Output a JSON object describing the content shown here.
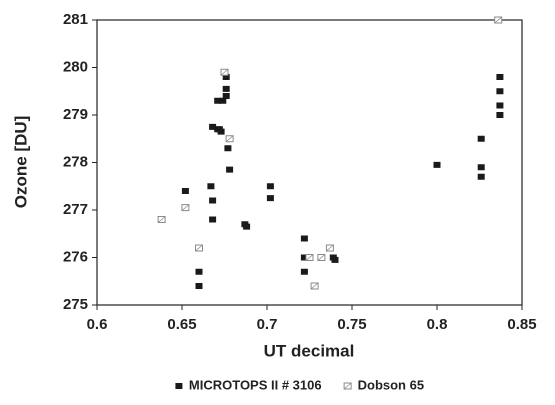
{
  "chart_data": {
    "type": "scatter",
    "x_label": "UT decimal",
    "y_label": "Ozone [DU]",
    "xlim": [
      0.6,
      0.85
    ],
    "xticks": [
      0.6,
      0.65,
      0.7,
      0.75,
      0.8,
      0.85
    ],
    "ylim": [
      275,
      281
    ],
    "yticks": [
      275,
      276,
      277,
      278,
      279,
      280,
      281
    ],
    "legend": "bottom",
    "series": [
      {
        "name": "MICROTOPS II # 3106",
        "color": "#1a1a1a",
        "marker": "filled-square",
        "x": [
          0.652,
          0.66,
          0.66,
          0.667,
          0.668,
          0.668,
          0.668,
          0.671,
          0.673,
          0.672,
          0.671,
          0.674,
          0.676,
          0.676,
          0.676,
          0.677,
          0.678,
          0.687,
          0.688,
          0.702,
          0.702,
          0.722,
          0.722,
          0.722,
          0.739,
          0.74,
          0.8,
          0.826,
          0.826,
          0.826,
          0.837,
          0.837,
          0.837,
          0.837
        ],
        "values": [
          277.4,
          275.7,
          275.4,
          277.5,
          277.2,
          276.8,
          278.75,
          278.7,
          278.65,
          278.7,
          279.3,
          279.3,
          279.4,
          279.55,
          279.8,
          278.3,
          277.85,
          276.7,
          276.65,
          277.5,
          277.25,
          276.4,
          276.0,
          275.7,
          276.0,
          275.95,
          277.95,
          278.5,
          277.9,
          277.7,
          279.8,
          279.5,
          279.2,
          279.0
        ]
      },
      {
        "name": "Dobson 65",
        "color": "#8a8a8a",
        "marker": "crossed-square",
        "x": [
          0.638,
          0.652,
          0.66,
          0.675,
          0.678,
          0.725,
          0.728,
          0.732,
          0.737,
          0.836
        ],
        "values": [
          276.8,
          277.05,
          276.2,
          279.9,
          278.5,
          276.0,
          275.4,
          276.0,
          276.2,
          281.0
        ]
      }
    ]
  }
}
